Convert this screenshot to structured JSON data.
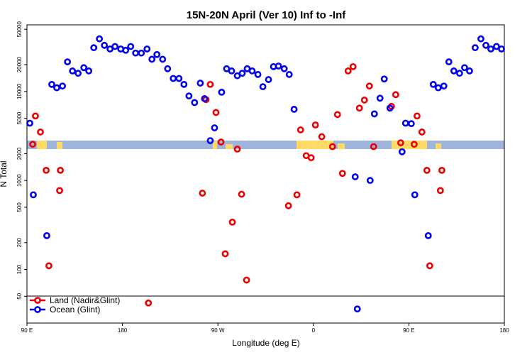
{
  "chart_data": {
    "type": "scatter",
    "title": "15N-20N April (Ver 10)   Inf to -Inf",
    "x_label": "Longitude (deg E)",
    "y_label": "N Total",
    "log_y": true,
    "legend": "bottom-left",
    "xlim": [
      90,
      540
    ],
    "xticks": [
      {
        "value": 90,
        "label": "90 E"
      },
      180,
      {
        "value": 270,
        "label": "90 W"
      },
      {
        "value": 360,
        "label": "0"
      },
      {
        "value": 450,
        "label": "90 E"
      },
      {
        "value": 540,
        "label": "180"
      }
    ],
    "ylim": [
      25,
      56000
    ],
    "yticks": [
      50,
      100,
      200,
      500,
      1000,
      2000,
      5000,
      10000,
      20000,
      50000
    ],
    "series": [
      {
        "name": "Land (Nadir&Glint)",
        "color": "#ee0000",
        "x": [
          95.4,
          98.0,
          102.7,
          108.1,
          110.7,
          120.8,
          121.5,
          204.5,
          255.4,
          258.8,
          262.8,
          268.2,
          272.9,
          276.9,
          283.6,
          288.3,
          292.3,
          297.0,
          336.5,
          344.5,
          347.9,
          353.2,
          357.9,
          361.9,
          367.9,
          378.0,
          382.7,
          387.4,
          392.7,
          397.4,
          403.4,
          408.1,
          412.8,
          416.8,
          433.6,
          437.6,
          442.3,
          455.0,
          457.7,
          462.3,
          467.0,
          469.7,
          479.7,
          481.1
        ],
        "values": [
          2550,
          5300,
          3500,
          1300,
          110,
          770,
          1300,
          42,
          720,
          8100,
          12000,
          5800,
          2700,
          150,
          340,
          2250,
          700,
          76,
          520,
          690,
          3700,
          1900,
          1800,
          4200,
          3100,
          2400,
          5500,
          1200,
          17000,
          19000,
          6500,
          8000,
          11500,
          2400,
          6800,
          9200,
          2650,
          2550,
          5300,
          3500,
          1300,
          110,
          770,
          1300
        ]
      },
      {
        "name": "Ocean (Glint)",
        "color": "#0000ee",
        "x": [
          92.7,
          96.0,
          108.7,
          113.4,
          118.1,
          123.5,
          128.2,
          132.9,
          138.2,
          143.6,
          148.3,
          153.0,
          158.3,
          163.0,
          168.3,
          173.0,
          178.4,
          183.1,
          187.8,
          192.4,
          197.8,
          203.2,
          207.8,
          212.5,
          217.9,
          222.6,
          227.9,
          233.3,
          238.0,
          242.7,
          248.0,
          253.4,
          257.4,
          262.8,
          266.8,
          273.5,
          278.2,
          282.9,
          288.3,
          292.9,
          297.6,
          302.3,
          307.7,
          312.4,
          317.7,
          322.4,
          327.1,
          332.5,
          337.2,
          341.8,
          399.4,
          401.4,
          413.5,
          417.5,
          422.8,
          426.8,
          432.2,
          443.6,
          446.9,
          452.3,
          455.6,
          468.3,
          473.0,
          477.7,
          483.0,
          487.7,
          492.4,
          497.8,
          502.5,
          507.2,
          512.5,
          517.9,
          522.6,
          527.3,
          532.6,
          537.3
        ],
        "values": [
          4400,
          690,
          240,
          12000,
          11000,
          11500,
          21500,
          17000,
          16000,
          18500,
          17000,
          31000,
          39000,
          33000,
          30000,
          32000,
          30000,
          29000,
          32000,
          27000,
          27000,
          30000,
          23000,
          26000,
          23000,
          18000,
          14000,
          14000,
          12000,
          8900,
          7500,
          12400,
          8300,
          2800,
          3900,
          9800,
          18000,
          17000,
          15000,
          16000,
          18000,
          17000,
          15500,
          11300,
          13600,
          19000,
          19300,
          18000,
          15500,
          6300,
          1100,
          36,
          1000,
          5600,
          8400,
          13800,
          6500,
          2100,
          4400,
          4350,
          690,
          240,
          12000,
          11000,
          11500,
          21500,
          17000,
          16000,
          18500,
          17000,
          31000,
          39000,
          33000,
          30000,
          32000,
          30000
        ]
      }
    ]
  }
}
